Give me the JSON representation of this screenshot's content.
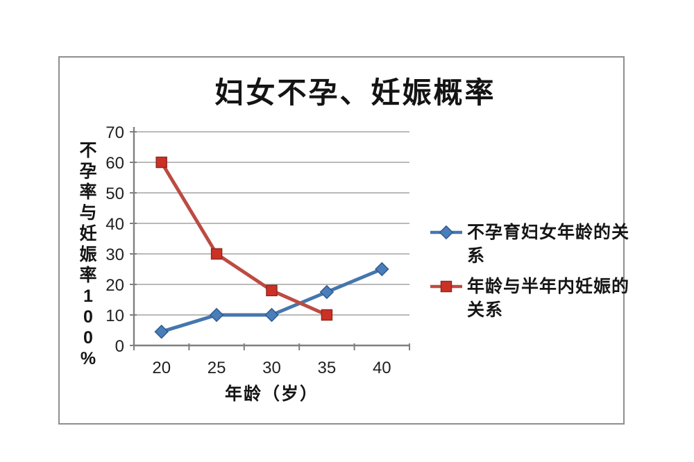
{
  "page": {
    "background": "#ffffff"
  },
  "chart_frame": {
    "border_color": "#8e8e8e"
  },
  "chart_data": {
    "type": "line",
    "title": "妇女不孕、妊娠概率",
    "xlabel": "年龄（岁）",
    "ylabel": "不孕率与妊娠率100%",
    "categories": [
      20,
      25,
      30,
      35,
      40
    ],
    "x_tick_labels": [
      "20",
      "25",
      "30",
      "35",
      "40"
    ],
    "y_ticks": [
      0,
      10,
      20,
      30,
      40,
      50,
      60,
      70
    ],
    "ylim": [
      0,
      70
    ],
    "grid": true,
    "legend_position": "right",
    "series": [
      {
        "name": "不孕育妇女年龄的关系",
        "marker": "diamond",
        "line_color": "#4576AE",
        "marker_color": "#4A7EBB",
        "marker_edge": "#2F5A8C",
        "values": [
          4.5,
          10,
          10,
          17.5,
          25
        ]
      },
      {
        "name": "年龄与半年内妊娠的关系",
        "marker": "square",
        "line_color": "#BC4B42",
        "marker_color": "#CC3126",
        "marker_edge": "#8F2A21",
        "values": [
          60,
          30,
          18,
          10
        ]
      }
    ],
    "colors": {
      "grid": "#A3A3A3",
      "axis": "#7F7F7F",
      "text": "#1F1F1F"
    }
  }
}
